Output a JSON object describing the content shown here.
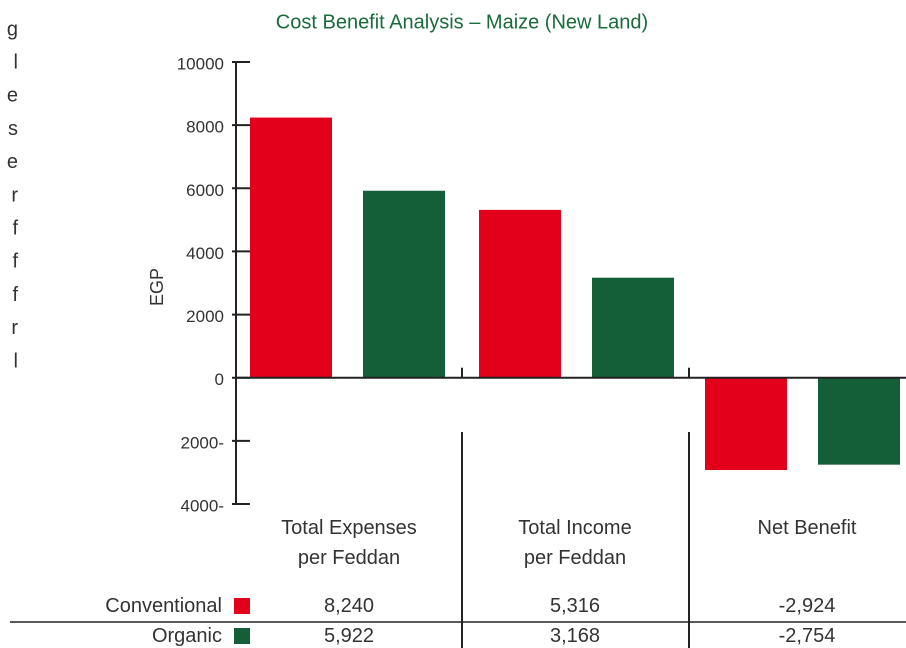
{
  "chart_data": {
    "type": "bar",
    "title": "Cost Benefit Analysis – Maize (New Land)",
    "ylabel": "EGP",
    "categories": [
      "Total Expenses\nper Feddan",
      "Total Income\nper Feddan",
      "Net Benefit"
    ],
    "series": [
      {
        "name": "Conventional",
        "color": "#e2001a",
        "values": [
          8240,
          5316,
          -2924
        ],
        "value_labels": [
          "8,240",
          "5,316",
          "-2,924"
        ]
      },
      {
        "name": "Organic",
        "color": "#145e38",
        "values": [
          5922,
          3168,
          -2754
        ],
        "value_labels": [
          "5,922",
          "3,168",
          "-2,754"
        ]
      }
    ],
    "ylim": [
      -4000,
      10000
    ],
    "yticks": [
      {
        "value": -4000,
        "label": "4000-"
      },
      {
        "value": -2000,
        "label": "2000-"
      },
      0,
      2000,
      4000,
      6000,
      8000,
      10000
    ],
    "clipped_text": [
      "g",
      "l",
      "e",
      "s",
      "e",
      "r",
      "f",
      "f",
      "f",
      "r",
      "l"
    ]
  }
}
